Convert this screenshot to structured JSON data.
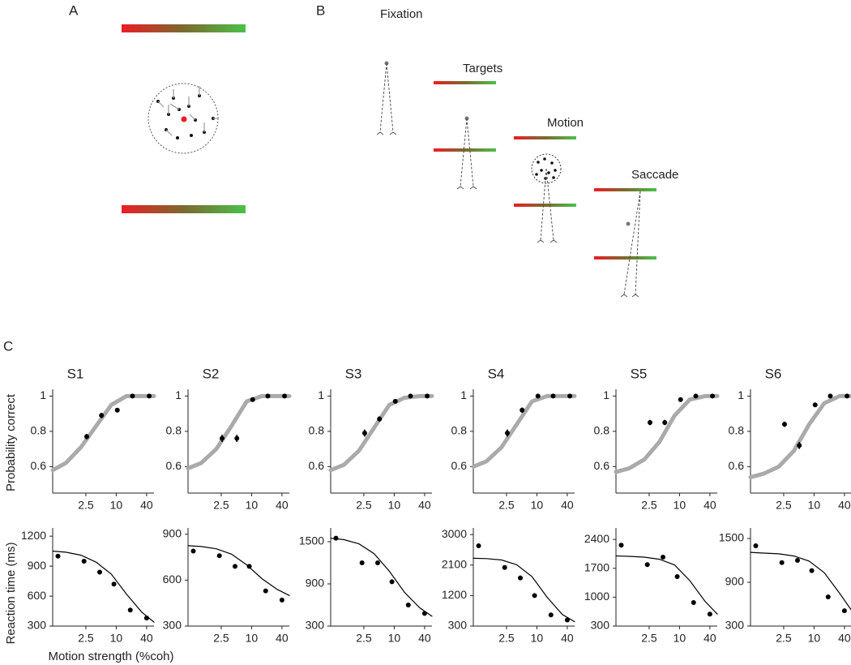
{
  "panel_labels": [
    "A",
    "B",
    "C"
  ],
  "task_steps": [
    "Fixation",
    "Targets",
    "Motion",
    "Saccade"
  ],
  "chart_data": [
    {
      "type": "scatter",
      "title": "S1",
      "ylabel": "Probability correct",
      "log_x": true,
      "xlim": [
        0.55,
        56
      ],
      "xticks": [
        2.5,
        10,
        40
      ],
      "ylim": [
        0.45,
        1.02
      ],
      "yticks": [
        0.6,
        0.8,
        1
      ],
      "series": [
        {
          "mark": "line",
          "color": "#aaaaaa",
          "x": [
            0.55,
            1,
            2,
            4,
            8,
            16,
            32,
            56
          ],
          "values": [
            0.58,
            0.62,
            0.71,
            0.83,
            0.95,
            1,
            1,
            1
          ]
        },
        {
          "mark": "point",
          "color": "#000000",
          "x": [
            2.6,
            5.1,
            10.5,
            21,
            45
          ],
          "values": [
            0.77,
            0.89,
            0.92,
            1,
            1
          ],
          "errors": [
            0.015,
            0.015,
            0.01,
            0.005,
            0.005
          ]
        }
      ]
    },
    {
      "type": "scatter",
      "title": "S2",
      "log_x": true,
      "xlim": [
        0.55,
        56
      ],
      "xticks": [
        2.5,
        10,
        40
      ],
      "ylim": [
        0.45,
        1.02
      ],
      "yticks": [
        0.6,
        0.8,
        1
      ],
      "series": [
        {
          "mark": "line",
          "color": "#aaaaaa",
          "x": [
            0.55,
            1,
            2,
            4,
            8,
            16,
            32,
            56
          ],
          "values": [
            0.59,
            0.62,
            0.7,
            0.83,
            0.97,
            1,
            1,
            1
          ]
        },
        {
          "mark": "point",
          "color": "#000000",
          "x": [
            2.6,
            5.1,
            10.5,
            21,
            45
          ],
          "values": [
            0.76,
            0.76,
            0.98,
            1,
            1
          ],
          "errors": [
            0.02,
            0.02,
            0.01,
            0.005,
            0.005
          ]
        }
      ]
    },
    {
      "type": "scatter",
      "title": "S3",
      "log_x": true,
      "xlim": [
        0.55,
        56
      ],
      "xticks": [
        2.5,
        10,
        40
      ],
      "ylim": [
        0.45,
        1.02
      ],
      "yticks": [
        0.6,
        0.8,
        1
      ],
      "series": [
        {
          "mark": "line",
          "color": "#aaaaaa",
          "x": [
            0.55,
            1,
            2,
            4,
            8,
            16,
            32,
            56
          ],
          "values": [
            0.58,
            0.61,
            0.69,
            0.82,
            0.95,
            0.99,
            1,
            1
          ]
        },
        {
          "mark": "point",
          "color": "#000000",
          "x": [
            2.6,
            5.1,
            10.5,
            21,
            45
          ],
          "values": [
            0.79,
            0.87,
            0.97,
            1,
            1
          ],
          "errors": [
            0.02,
            0.015,
            0.01,
            0.005,
            0.005
          ]
        }
      ]
    },
    {
      "type": "scatter",
      "title": "S4",
      "log_x": true,
      "xlim": [
        0.55,
        56
      ],
      "xticks": [
        2.5,
        10,
        40
      ],
      "ylim": [
        0.45,
        1.02
      ],
      "yticks": [
        0.6,
        0.8,
        1
      ],
      "series": [
        {
          "mark": "line",
          "color": "#aaaaaa",
          "x": [
            0.55,
            1,
            2,
            4,
            8,
            16,
            32,
            56
          ],
          "values": [
            0.6,
            0.63,
            0.71,
            0.84,
            0.97,
            1,
            1,
            1
          ]
        },
        {
          "mark": "point",
          "color": "#000000",
          "x": [
            2.6,
            5.1,
            10.5,
            21,
            45
          ],
          "values": [
            0.79,
            0.92,
            1,
            1,
            1
          ],
          "errors": [
            0.02,
            0.015,
            0.005,
            0.005,
            0.005
          ]
        }
      ]
    },
    {
      "type": "scatter",
      "title": "S5",
      "log_x": true,
      "xlim": [
        0.55,
        56
      ],
      "xticks": [
        2.5,
        10,
        40
      ],
      "ylim": [
        0.45,
        1.02
      ],
      "yticks": [
        0.6,
        0.8,
        1
      ],
      "series": [
        {
          "mark": "line",
          "color": "#aaaaaa",
          "x": [
            0.55,
            1,
            2,
            4,
            8,
            16,
            32,
            56
          ],
          "values": [
            0.57,
            0.59,
            0.64,
            0.74,
            0.89,
            0.98,
            1,
            1
          ]
        },
        {
          "mark": "point",
          "color": "#000000",
          "x": [
            2.6,
            5.1,
            10.5,
            21,
            45
          ],
          "values": [
            0.85,
            0.85,
            0.98,
            1,
            1
          ],
          "errors": [
            0.015,
            0.015,
            0.005,
            0.005,
            0.005
          ]
        }
      ]
    },
    {
      "type": "scatter",
      "title": "S6",
      "log_x": true,
      "xlim": [
        0.55,
        56
      ],
      "xticks": [
        2.5,
        10,
        40
      ],
      "ylim": [
        0.45,
        1.02
      ],
      "yticks": [
        0.6,
        0.8,
        1
      ],
      "series": [
        {
          "mark": "line",
          "color": "#aaaaaa",
          "x": [
            0.55,
            1,
            2,
            4,
            8,
            16,
            32,
            56
          ],
          "values": [
            0.54,
            0.56,
            0.6,
            0.69,
            0.84,
            0.96,
            1,
            1
          ]
        },
        {
          "mark": "point",
          "color": "#000000",
          "x": [
            2.6,
            5.1,
            10.5,
            21,
            45
          ],
          "values": [
            0.84,
            0.72,
            0.95,
            1,
            1
          ],
          "errors": [
            0.015,
            0.02,
            0.01,
            0.005,
            0.005
          ]
        }
      ]
    },
    {
      "type": "scatter",
      "ylabel": "Reaction time (ms)",
      "xlabel": "Motion strength (%coh)",
      "log_x": true,
      "xlim": [
        0.55,
        56
      ],
      "xticks": [
        2.5,
        10,
        40
      ],
      "ylim": [
        300,
        1250
      ],
      "yticks": [
        300,
        600,
        900,
        1200
      ],
      "series": [
        {
          "mark": "line",
          "color": "#000000",
          "x": [
            0.55,
            1,
            2,
            4,
            8,
            16,
            32,
            56
          ],
          "values": [
            1050,
            1040,
            1010,
            940,
            820,
            620,
            440,
            340
          ]
        },
        {
          "mark": "point",
          "color": "#000000",
          "x": [
            0.7,
            2.3,
            4.7,
            9,
            19,
            40
          ],
          "values": [
            1000,
            950,
            840,
            720,
            460,
            380
          ]
        }
      ]
    },
    {
      "type": "scatter",
      "log_x": true,
      "xlim": [
        0.55,
        56
      ],
      "xticks": [
        2.5,
        10,
        40
      ],
      "ylim": [
        300,
        920
      ],
      "yticks": [
        300,
        600,
        900
      ],
      "series": [
        {
          "mark": "line",
          "color": "#000000",
          "x": [
            0.55,
            1,
            2,
            4,
            8,
            16,
            32,
            56
          ],
          "values": [
            825,
            820,
            805,
            770,
            700,
            610,
            540,
            500
          ]
        },
        {
          "mark": "point",
          "color": "#000000",
          "x": [
            0.7,
            2.3,
            4.7,
            9,
            19,
            40
          ],
          "values": [
            790,
            760,
            690,
            690,
            530,
            470
          ]
        }
      ]
    },
    {
      "type": "scatter",
      "log_x": true,
      "xlim": [
        0.55,
        56
      ],
      "xticks": [
        2.5,
        10,
        40
      ],
      "ylim": [
        300,
        1650
      ],
      "yticks": [
        300,
        900,
        1500
      ],
      "series": [
        {
          "mark": "line",
          "color": "#000000",
          "x": [
            0.55,
            1,
            2,
            4,
            8,
            16,
            32,
            56
          ],
          "values": [
            1550,
            1530,
            1470,
            1330,
            1080,
            780,
            560,
            440
          ]
        },
        {
          "mark": "point",
          "color": "#000000",
          "x": [
            0.7,
            2.3,
            4.7,
            9,
            19,
            40
          ],
          "values": [
            1550,
            1200,
            1200,
            930,
            600,
            480
          ]
        }
      ]
    },
    {
      "type": "scatter",
      "log_x": true,
      "xlim": [
        0.55,
        56
      ],
      "xticks": [
        2.5,
        10,
        40
      ],
      "ylim": [
        300,
        3100
      ],
      "yticks": [
        300,
        1200,
        2100,
        3000
      ],
      "series": [
        {
          "mark": "line",
          "color": "#000000",
          "x": [
            0.55,
            1,
            2,
            4,
            8,
            16,
            32,
            56
          ],
          "values": [
            2300,
            2290,
            2250,
            2110,
            1760,
            1150,
            640,
            430
          ]
        },
        {
          "mark": "point",
          "color": "#000000",
          "x": [
            0.7,
            2.3,
            4.7,
            9,
            19,
            40
          ],
          "values": [
            2670,
            2030,
            1720,
            1200,
            630,
            480
          ]
        }
      ]
    },
    {
      "type": "scatter",
      "log_x": true,
      "xlim": [
        0.55,
        56
      ],
      "xticks": [
        2.5,
        10,
        40
      ],
      "ylim": [
        300,
        2600
      ],
      "yticks": [
        300,
        1000,
        1700,
        2400
      ],
      "series": [
        {
          "mark": "line",
          "color": "#000000",
          "x": [
            0.55,
            1,
            2,
            4,
            8,
            16,
            32,
            56
          ],
          "values": [
            2000,
            1990,
            1970,
            1920,
            1780,
            1400,
            900,
            590
          ]
        },
        {
          "mark": "point",
          "color": "#000000",
          "x": [
            0.7,
            2.3,
            4.7,
            9,
            19,
            40
          ],
          "values": [
            2260,
            1790,
            1970,
            1500,
            870,
            590
          ]
        }
      ]
    },
    {
      "type": "scatter",
      "log_x": true,
      "xlim": [
        0.55,
        56
      ],
      "xticks": [
        2.5,
        10,
        40
      ],
      "ylim": [
        300,
        1600
      ],
      "yticks": [
        300,
        900,
        1500
      ],
      "series": [
        {
          "mark": "line",
          "color": "#000000",
          "x": [
            0.55,
            1,
            2,
            4,
            8,
            16,
            32,
            56
          ],
          "values": [
            1310,
            1300,
            1290,
            1260,
            1190,
            1030,
            750,
            510
          ]
        },
        {
          "mark": "point",
          "color": "#000000",
          "x": [
            0.7,
            2.3,
            4.7,
            9,
            19,
            40
          ],
          "values": [
            1400,
            1170,
            1200,
            1060,
            700,
            510
          ]
        }
      ]
    }
  ]
}
